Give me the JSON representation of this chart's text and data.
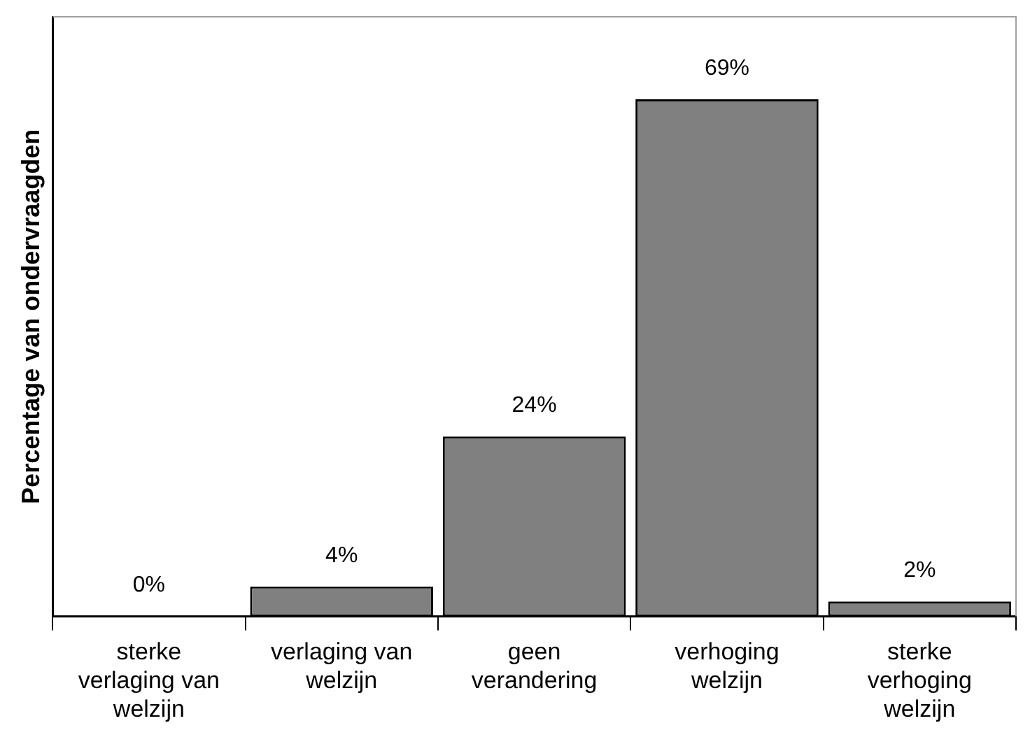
{
  "chart_data": {
    "type": "bar",
    "ylabel": "Percentage van ondervraagden",
    "categories": [
      "sterke verlaging van welzijn",
      "verlaging van welzijn",
      "geen verandering",
      "verhoging welzijn",
      "sterke verhoging welzijn"
    ],
    "values": [
      0,
      4,
      24,
      69,
      2
    ],
    "color": "#808080",
    "value_labels": [
      "0%",
      "4%",
      "24%",
      "69%",
      "2%"
    ],
    "grid": false,
    "legend": false
  }
}
